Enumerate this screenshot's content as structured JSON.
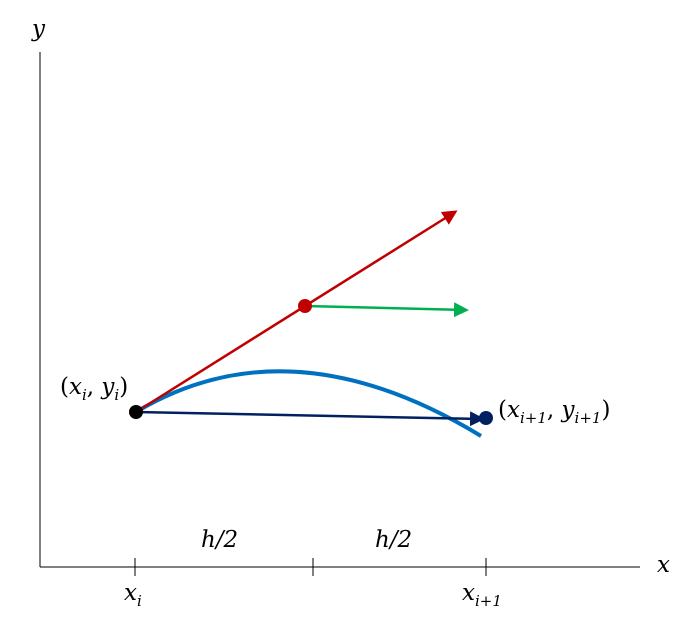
{
  "axes": {
    "x_label": "x",
    "y_label": "y"
  },
  "ticks": {
    "xi": {
      "base": "x",
      "sub": "i"
    },
    "xi1": {
      "base": "x",
      "sub": "i+1"
    }
  },
  "intervals": {
    "first": "h/2",
    "second": "h/2"
  },
  "points": {
    "start": {
      "open": "(",
      "x": "x",
      "x_sub": "i",
      "sep": ", ",
      "y": "y",
      "y_sub": "i",
      "close": ")"
    },
    "end": {
      "open": "(",
      "x": "x",
      "x_sub": "i+1",
      "sep": ", ",
      "y": "y",
      "y_sub": "i+1",
      "close": ")"
    }
  },
  "colors": {
    "axis": "#000000",
    "curve": "#0070c0",
    "slope_start": "#c00000",
    "slope_mid": "#00b050",
    "step": "#002060",
    "point_start": "#000000",
    "point_mid": "#c00000",
    "point_end": "#002060"
  }
}
